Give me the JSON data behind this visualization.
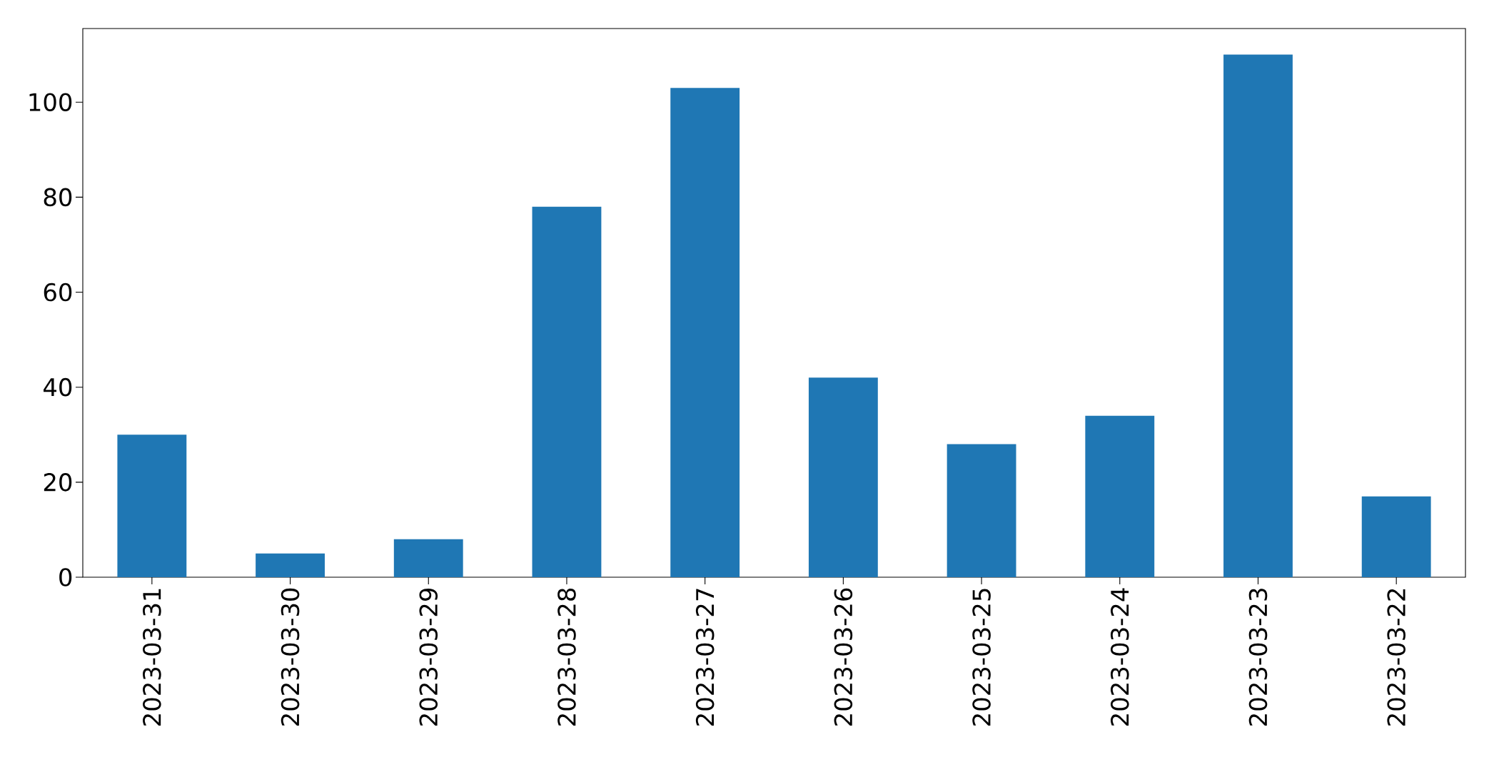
{
  "chart_data": {
    "type": "bar",
    "categories": [
      "2023-03-31",
      "2023-03-30",
      "2023-03-29",
      "2023-03-28",
      "2023-03-27",
      "2023-03-26",
      "2023-03-25",
      "2023-03-24",
      "2023-03-23",
      "2023-03-22"
    ],
    "values": [
      30,
      5,
      8,
      78,
      103,
      42,
      28,
      34,
      110,
      17
    ],
    "color": "#1f77b4",
    "ylim": [
      0,
      115.5
    ],
    "yticks": [
      0,
      20,
      40,
      60,
      80,
      100
    ]
  }
}
